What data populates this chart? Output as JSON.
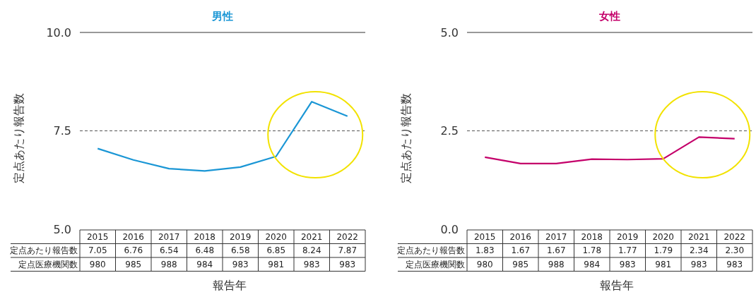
{
  "chart_data": [
    {
      "type": "line",
      "title": "男性",
      "xlabel": "報告年",
      "ylabel": "定点あたり報告数",
      "categories": [
        "2015",
        "2016",
        "2017",
        "2018",
        "2019",
        "2020",
        "2021",
        "2022"
      ],
      "series": [
        {
          "name": "定点あたり報告数",
          "color": "#1a96d5",
          "values": [
            7.05,
            6.76,
            6.54,
            6.48,
            6.58,
            6.85,
            8.24,
            7.87
          ],
          "value_labels": [
            "7.05",
            "6.76",
            "6.54",
            "6.48",
            "6.58",
            "6.85",
            "8.24",
            "7.87"
          ]
        },
        {
          "name": "定点医療機関数",
          "values": [
            null,
            null,
            null,
            null,
            null,
            null,
            null,
            null
          ],
          "value_labels": [
            "980",
            "985",
            "988",
            "984",
            "983",
            "981",
            "983",
            "983"
          ]
        }
      ],
      "ylim": [
        5,
        10
      ],
      "yticks": [
        {
          "value": 5,
          "label": "5.0"
        },
        {
          "value": 7.5,
          "label": "7.5"
        },
        {
          "value": 10,
          "label": "10.0"
        }
      ],
      "ref_lines": [
        {
          "axis": "y",
          "value": 7.5,
          "color": "#555555",
          "line_style": "dashed"
        }
      ],
      "grid": false,
      "legend": false,
      "marker": "none"
    },
    {
      "type": "line",
      "title": "女性",
      "xlabel": "報告年",
      "ylabel": "定点あたり報告数",
      "categories": [
        "2015",
        "2016",
        "2017",
        "2018",
        "2019",
        "2020",
        "2021",
        "2022"
      ],
      "series": [
        {
          "name": "定点あたり報告数",
          "color": "#c4006a",
          "values": [
            1.83,
            1.67,
            1.67,
            1.78,
            1.77,
            1.79,
            2.34,
            2.3
          ],
          "value_labels": [
            "1.83",
            "1.67",
            "1.67",
            "1.78",
            "1.77",
            "1.79",
            "2.34",
            "2.30"
          ]
        },
        {
          "name": "定点医療機関数",
          "values": [
            null,
            null,
            null,
            null,
            null,
            null,
            null,
            null
          ],
          "value_labels": [
            "980",
            "985",
            "988",
            "984",
            "983",
            "981",
            "983",
            "983"
          ]
        }
      ],
      "ylim": [
        0,
        5
      ],
      "yticks": [
        {
          "value": 0,
          "label": "0.0"
        },
        {
          "value": 2.5,
          "label": "2.5"
        },
        {
          "value": 5,
          "label": "5.0"
        }
      ],
      "ref_lines": [
        {
          "axis": "y",
          "value": 2.5,
          "color": "#555555",
          "line_style": "dashed"
        }
      ],
      "grid": false,
      "legend": false,
      "marker": "none"
    }
  ]
}
